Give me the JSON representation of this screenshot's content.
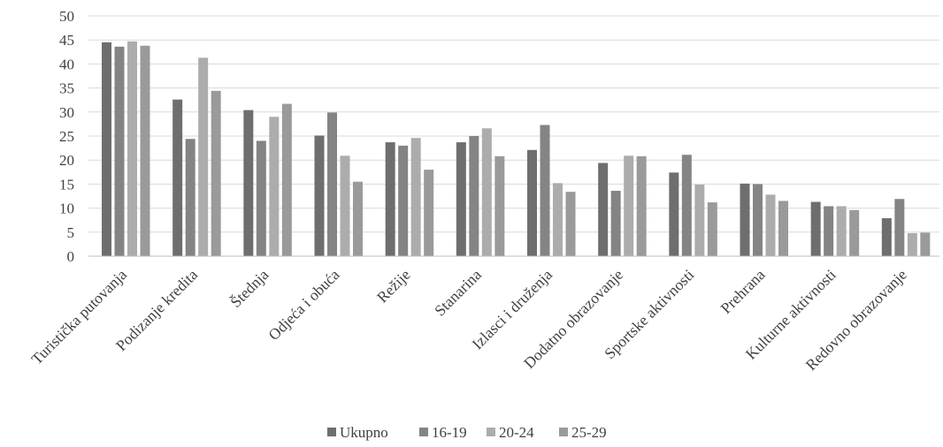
{
  "chart_data": {
    "type": "bar",
    "title": "",
    "xlabel": "",
    "ylabel": "",
    "ylim": [
      0,
      50
    ],
    "yticks": [
      0,
      5,
      10,
      15,
      20,
      25,
      30,
      35,
      40,
      45,
      50
    ],
    "grid": true,
    "legend_position": "bottom",
    "categories": [
      "Turistička putovanja",
      "Podizanje kredita",
      "Štednja",
      "Odjeća i obuća",
      "Režije",
      "Stanarina",
      "Izlasci i druženja",
      "Dodatno obrazovanje",
      "Sportske aktivnosti",
      "Prehrana",
      "Kulturne aktivnosti",
      "Redovno obrazovanje"
    ],
    "series": [
      {
        "name": "Ukupno",
        "color": "#6e6e6e",
        "values": [
          44.5,
          32.6,
          30.4,
          25.1,
          23.7,
          23.7,
          22.1,
          19.4,
          17.4,
          15.1,
          11.3,
          7.9
        ]
      },
      {
        "name": "16-19",
        "color": "#848484",
        "values": [
          43.6,
          24.4,
          24.0,
          29.9,
          23.0,
          25.0,
          27.3,
          13.6,
          21.1,
          15.0,
          10.4,
          11.9
        ]
      },
      {
        "name": "20-24",
        "color": "#acacac",
        "values": [
          44.7,
          41.3,
          29.0,
          20.9,
          24.6,
          26.6,
          15.2,
          20.9,
          14.9,
          12.8,
          10.4,
          4.8
        ]
      },
      {
        "name": "25-29",
        "color": "#9a9a9a",
        "values": [
          43.8,
          34.4,
          31.7,
          15.5,
          18.0,
          20.8,
          13.4,
          20.8,
          11.2,
          11.5,
          9.6,
          4.9
        ]
      }
    ]
  }
}
